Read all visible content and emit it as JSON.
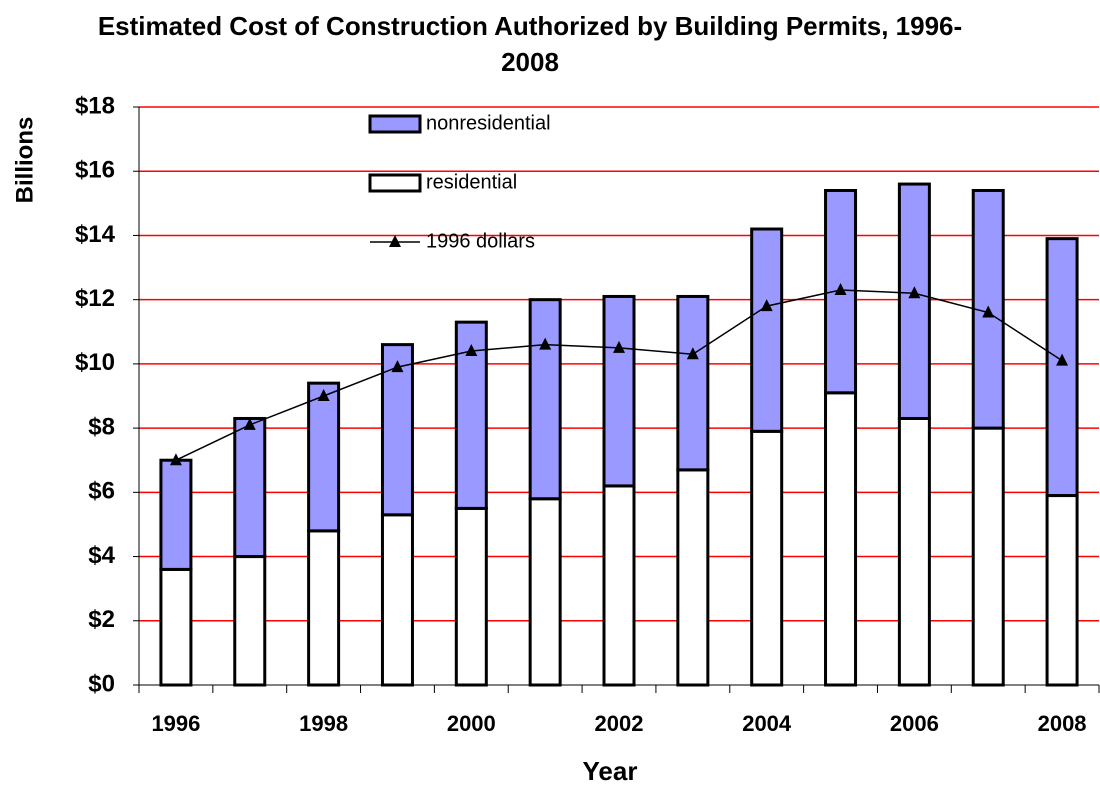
{
  "chart_data": {
    "type": "bar",
    "title": "Estimated Cost of Construction Authorized by Building Permits, 1996-2008",
    "x_label": "Year",
    "y_label": "Billions",
    "categories": [
      "1996",
      null,
      "1998",
      null,
      "2000",
      null,
      "2002",
      null,
      "2004",
      null,
      "2006",
      null,
      "2008"
    ],
    "series": [
      {
        "name": "nonresidential",
        "kind": "bar",
        "color": "#9999ff",
        "values": [
          3.4,
          4.3,
          4.6,
          5.3,
          5.8,
          6.2,
          5.9,
          5.4,
          6.3,
          6.3,
          7.3,
          7.4,
          8.0
        ]
      },
      {
        "name": "residential",
        "kind": "bar",
        "color": "#ffffff",
        "values": [
          3.6,
          4.0,
          4.8,
          5.3,
          5.5,
          5.8,
          6.2,
          6.7,
          7.9,
          9.1,
          8.3,
          8.0,
          5.9
        ]
      },
      {
        "name": "1996 dollars",
        "kind": "line",
        "color": "#000000",
        "values": [
          7.0,
          8.1,
          9.0,
          9.9,
          10.4,
          10.6,
          10.5,
          10.3,
          11.8,
          12.3,
          12.2,
          11.6,
          10.1
        ]
      }
    ],
    "ylim": [
      0,
      18
    ],
    "yticks": [
      {
        "value": 0,
        "label": "$0"
      },
      {
        "value": 2,
        "label": "$2"
      },
      {
        "value": 4,
        "label": "$4"
      },
      {
        "value": 6,
        "label": "$6"
      },
      {
        "value": 8,
        "label": "$8"
      },
      {
        "value": 10,
        "label": "$10"
      },
      {
        "value": 12,
        "label": "$12"
      },
      {
        "value": 14,
        "label": "$14"
      },
      {
        "value": 16,
        "label": "$16"
      },
      {
        "value": 18,
        "label": "$18"
      }
    ],
    "grid": true,
    "grid_color": "#ff0000",
    "legend": "top-center"
  }
}
